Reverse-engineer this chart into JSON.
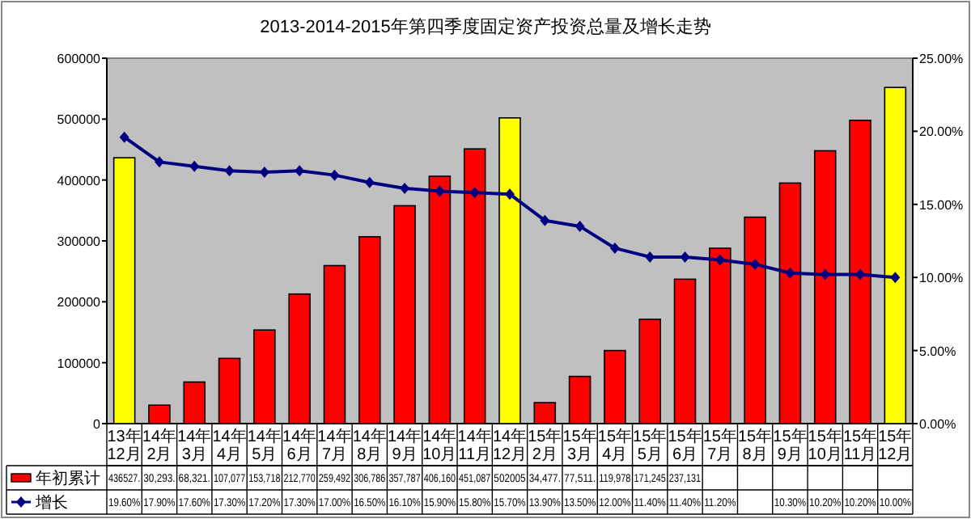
{
  "chart_data": {
    "type": "bar",
    "title": "2013-2014-2015年第四季度固定资产投资总量及增长走势",
    "categories": [
      "13年12月",
      "14年2月",
      "14年3月",
      "14年4月",
      "14年5月",
      "14年6月",
      "14年7月",
      "14年8月",
      "14年9月",
      "14年10月",
      "14年11月",
      "14年12月",
      "15年2月",
      "15年3月",
      "15年4月",
      "15年5月",
      "15年6月",
      "15年7月",
      "15年8月",
      "15年9月",
      "15年10月",
      "15年11月",
      "15年12月"
    ],
    "series": [
      {
        "name": "年初累计",
        "color": "#ff0000",
        "colors": [
          "#ffff00",
          "#ff0000",
          "#ff0000",
          "#ff0000",
          "#ff0000",
          "#ff0000",
          "#ff0000",
          "#ff0000",
          "#ff0000",
          "#ff0000",
          "#ff0000",
          "#ffff00",
          "#ff0000",
          "#ff0000",
          "#ff0000",
          "#ff0000",
          "#ff0000",
          "#ff0000",
          "#ff0000",
          "#ff0000",
          "#ff0000",
          "#ff0000",
          "#ffff00"
        ],
        "values": [
          436527,
          30293,
          68321,
          107077,
          153718,
          212770,
          259492,
          306786,
          357787,
          406160,
          451087,
          502005,
          34477,
          77511,
          119978,
          171245,
          237131,
          288000,
          339000,
          395000,
          448000,
          498000,
          552000
        ],
        "value_labels": [
          "436527.",
          "30,293.",
          "68,321.",
          "107,077",
          "153,718",
          "212,770",
          "259,492",
          "306,786",
          "357,787",
          "406,160",
          "451,087",
          "502005",
          "34,477.",
          "77,511.",
          "119,978",
          "171,245",
          "237,131",
          null,
          null,
          null,
          null,
          null,
          null
        ]
      },
      {
        "name": "增长",
        "type": "line",
        "axis": "y2",
        "color": "#000080",
        "marker": "diamond",
        "values": [
          19.6,
          17.9,
          17.6,
          17.3,
          17.2,
          17.3,
          17.0,
          16.5,
          16.1,
          15.9,
          15.8,
          15.7,
          13.9,
          13.5,
          12.0,
          11.4,
          11.4,
          11.2,
          10.9,
          10.3,
          10.2,
          10.2,
          10.0
        ],
        "value_labels": [
          "19.60%",
          "17.90%",
          "17.60%",
          "17.30%",
          "17.20%",
          "17.30%",
          "17.00%",
          "16.50%",
          "16.10%",
          "15.90%",
          "15.80%",
          "15.70%",
          "13.90%",
          "13.50%",
          "12.00%",
          "11.40%",
          "11.40%",
          "11.20%",
          null,
          "10.30%",
          "10.20%",
          "10.20%",
          "10.00%"
        ]
      }
    ],
    "ylim": [
      0,
      600000
    ],
    "yticks": [
      0,
      100000,
      200000,
      300000,
      400000,
      500000,
      600000
    ],
    "y2lim": [
      0,
      25
    ],
    "y2ticks": [
      {
        "value": 0,
        "label": "0.00%"
      },
      {
        "value": 5,
        "label": "5.00%"
      },
      {
        "value": 10,
        "label": "10.00%"
      },
      {
        "value": 15,
        "label": "15.00%"
      },
      {
        "value": 20,
        "label": "20.00%"
      },
      {
        "value": 25,
        "label": "25.00%"
      }
    ],
    "legend": "bottom left",
    "grid": false
  }
}
